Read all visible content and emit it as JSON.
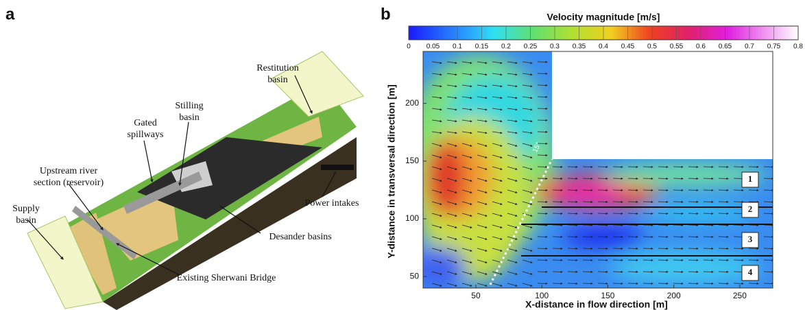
{
  "panel_a": {
    "letter": "a",
    "labels": [
      [
        "Restitution",
        "basin"
      ],
      [
        "Stilling",
        "basin"
      ],
      [
        "Gated",
        "spillways"
      ],
      [
        "Upstream river",
        "section (reservoir)"
      ],
      [
        "Supply",
        "basin"
      ],
      [
        "Power intakes"
      ],
      [
        "Desander basins"
      ],
      [
        "Existing Sherwani Bridge"
      ]
    ]
  },
  "chart_data": {
    "type": "contour",
    "letter": "b",
    "title": "Velocity magnitude [m/s]",
    "x_label": "X-distance in flow direction [m]",
    "y_label": "Y-distance in transversal direction [m]",
    "xlim": [
      10,
      275
    ],
    "xticks": [
      50,
      100,
      150,
      200,
      250
    ],
    "ylim": [
      40,
      245
    ],
    "yticks": [
      50,
      100,
      150,
      200
    ],
    "clim": [
      0,
      0.8
    ],
    "cticks": [
      0,
      0.05,
      0.1,
      0.15,
      0.2,
      0.25,
      0.3,
      0.35,
      0.4,
      0.45,
      0.5,
      0.55,
      0.6,
      0.65,
      0.7,
      0.75,
      0.8
    ],
    "annotations": [
      "15°"
    ],
    "channel_labels": [
      "1",
      "2",
      "3",
      "4"
    ]
  }
}
